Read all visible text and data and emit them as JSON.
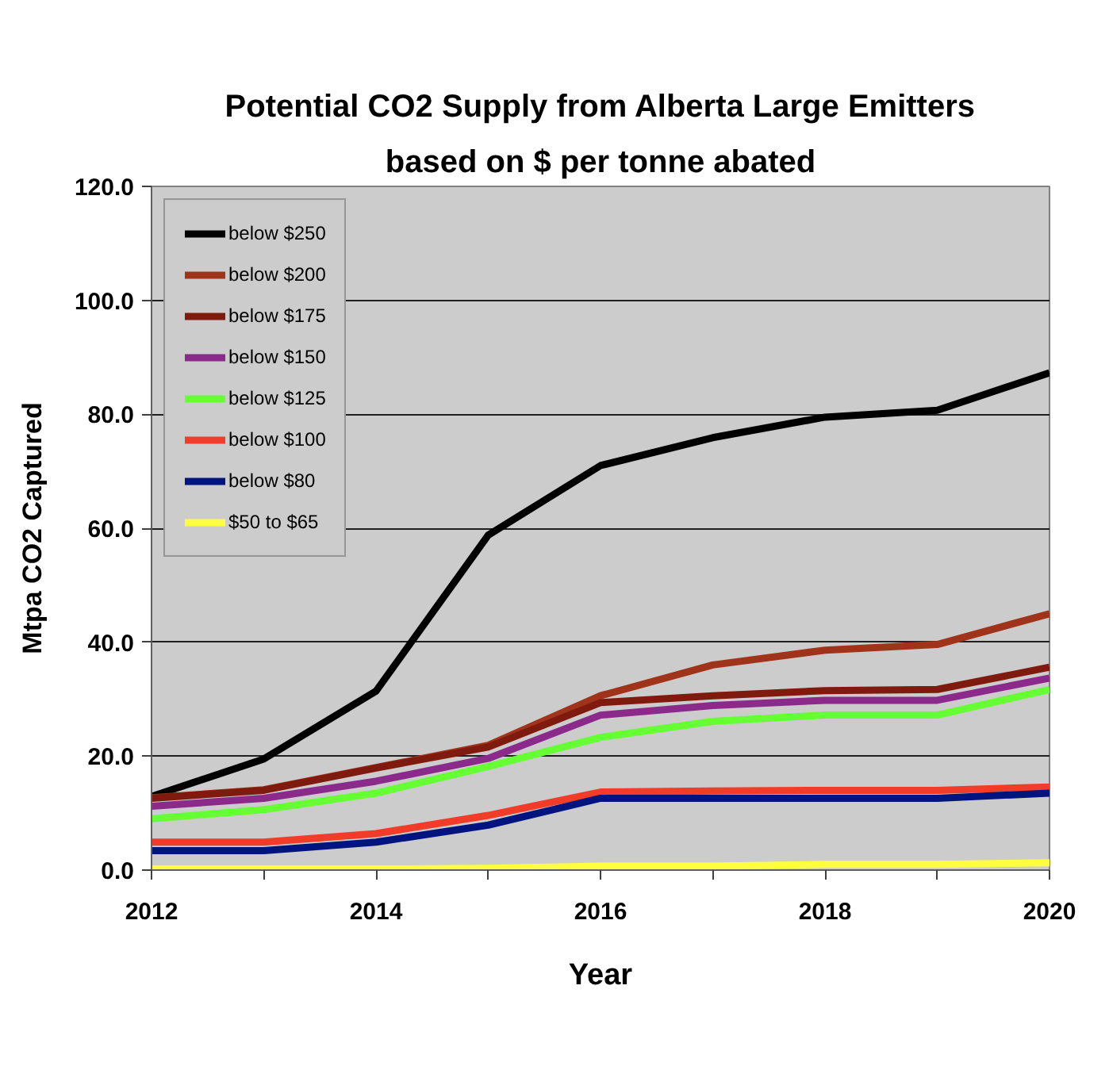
{
  "chart_data": {
    "type": "line",
    "title": "Potential CO2 Supply from Alberta Large Emitters",
    "subtitle": "based on $ per tonne abated",
    "xlabel": "Year",
    "ylabel": "Mtpa CO2 Captured",
    "x": [
      2012,
      2013,
      2014,
      2015,
      2016,
      2017,
      2018,
      2019,
      2020
    ],
    "series": [
      {
        "name": "below $250",
        "color": "#000000",
        "values": [
          12.9,
          19.5,
          31.4,
          58.8,
          71.0,
          75.9,
          79.5,
          80.7,
          87.3
        ]
      },
      {
        "name": "below $200",
        "color": "#a0341a",
        "values": [
          12.7,
          14.1,
          18.0,
          21.9,
          30.6,
          36.0,
          38.6,
          39.6,
          45.0
        ]
      },
      {
        "name": "below $175",
        "color": "#7f1a0e",
        "values": [
          12.6,
          14.0,
          17.9,
          21.6,
          29.4,
          30.6,
          31.5,
          31.7,
          35.6
        ]
      },
      {
        "name": "below $150",
        "color": "#8b2a8b",
        "values": [
          11.2,
          12.6,
          15.6,
          19.6,
          27.2,
          28.9,
          29.8,
          29.8,
          33.7
        ]
      },
      {
        "name": "below $125",
        "color": "#66ff33",
        "values": [
          9.0,
          10.6,
          13.5,
          18.2,
          23.3,
          26.1,
          27.2,
          27.2,
          31.7
        ]
      },
      {
        "name": "below $100",
        "color": "#f03c28",
        "values": [
          4.9,
          4.9,
          6.4,
          9.6,
          13.7,
          13.9,
          14.0,
          14.0,
          14.6
        ]
      },
      {
        "name": "below $80",
        "color": "#00147f",
        "values": [
          3.4,
          3.4,
          4.9,
          7.9,
          12.6,
          12.6,
          12.6,
          12.6,
          13.5
        ]
      },
      {
        "name": "$50 to $65",
        "color": "#ffff40",
        "values": [
          0.2,
          0.2,
          0.2,
          0.3,
          0.7,
          0.7,
          1.0,
          1.0,
          1.3
        ]
      }
    ],
    "xlim": [
      2012,
      2020
    ],
    "xticks": [
      2012,
      {
        "value": 2013,
        "label": null
      },
      2014,
      {
        "value": 2015,
        "label": null
      },
      2016,
      {
        "value": 2017,
        "label": null
      },
      2018,
      {
        "value": 2019,
        "label": null
      },
      2020
    ],
    "ylim": [
      0,
      120
    ],
    "yticks": [
      {
        "value": 0,
        "label": "0.0"
      },
      {
        "value": 20,
        "label": "20.0"
      },
      {
        "value": 40,
        "label": "40.0"
      },
      {
        "value": 60,
        "label": "60.0"
      },
      {
        "value": 80,
        "label": "80.0"
      },
      {
        "value": 100,
        "label": "100.0"
      },
      {
        "value": 120,
        "label": "120.0"
      }
    ],
    "grid": "y",
    "legend": "top left"
  }
}
